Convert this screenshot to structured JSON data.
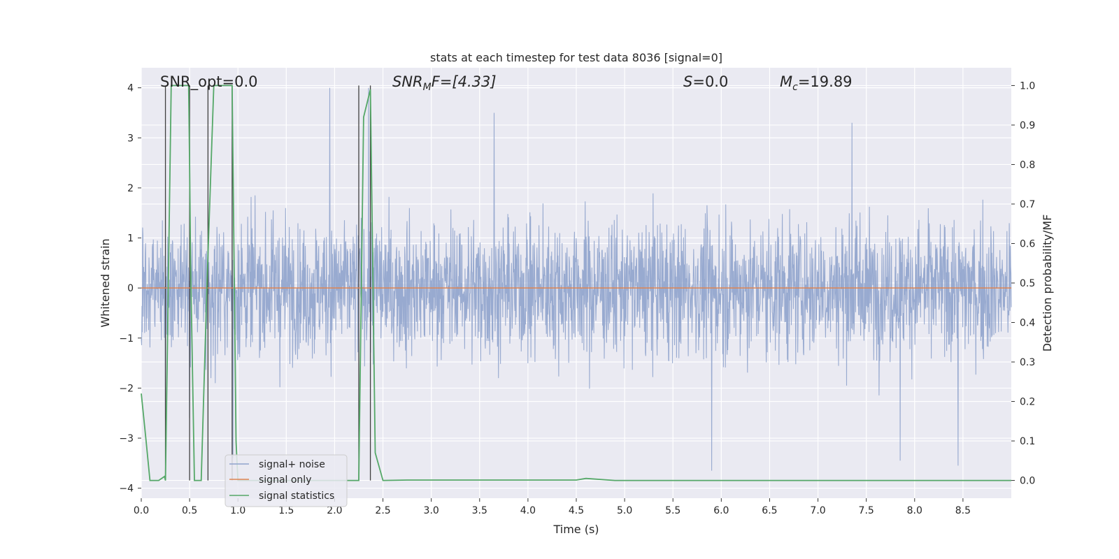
{
  "chart_data": {
    "type": "line",
    "title": "stats at each timestep for test data 8036 [signal=0]",
    "xlabel": "Time (s)",
    "ylabel": "Whitened strain",
    "ylabel_right": "Detection probability/MF",
    "xlim": [
      0.0,
      9.0
    ],
    "ylim": [
      -4.2,
      4.4
    ],
    "ylim_right": [
      -0.045,
      1.045
    ],
    "x_ticks": [
      "0.0",
      "0.5",
      "1.0",
      "1.5",
      "2.0",
      "2.5",
      "3.0",
      "3.5",
      "4.0",
      "4.5",
      "5.0",
      "5.5",
      "6.0",
      "6.5",
      "7.0",
      "7.5",
      "8.0",
      "8.5"
    ],
    "y_ticks": [
      "−4",
      "−3",
      "−2",
      "−1",
      "0",
      "1",
      "2",
      "3",
      "4"
    ],
    "y_ticks_right": [
      "0.0",
      "0.1",
      "0.2",
      "0.3",
      "0.4",
      "0.5",
      "0.6",
      "0.7",
      "0.8",
      "0.9",
      "1.0"
    ],
    "grid": true,
    "legend_position": "lower-left",
    "annotations": {
      "snr_opt": "SNR_opt=0.0",
      "snr_mf_main": "SNR",
      "snr_mf_sub": "M",
      "snr_mf_rest": "F=[4.33]",
      "s_main": "S",
      "s_rest": "=0.0",
      "mc_main": "M",
      "mc_sub": "c",
      "mc_rest": "=19.89"
    },
    "series": [
      {
        "name": "signal+ noise",
        "color": "#8fa3cc",
        "description_values": "whitened noise, approx ±1.4 envelope with spikes to about ±3.5",
        "peaks": [
          {
            "x": 0.25,
            "y": -2.6
          },
          {
            "x": 0.5,
            "y": -2.6
          },
          {
            "x": 0.72,
            "y": -1.8
          },
          {
            "x": 0.95,
            "y": -3.4
          },
          {
            "x": 1.95,
            "y": 4.0
          },
          {
            "x": 2.35,
            "y": 4.0
          },
          {
            "x": 3.65,
            "y": 3.5
          },
          {
            "x": 5.9,
            "y": -3.65
          },
          {
            "x": 7.35,
            "y": 3.3
          },
          {
            "x": 7.85,
            "y": -3.45
          },
          {
            "x": 8.45,
            "y": -3.55
          }
        ]
      },
      {
        "name": "signal only",
        "color": "#dd8452",
        "x": [
          0.0,
          9.0
        ],
        "y": [
          0.0,
          0.0
        ]
      },
      {
        "name": "signal statistics",
        "color": "#55a868",
        "axis": "right",
        "x": [
          0.0,
          0.05,
          0.09,
          0.18,
          0.24,
          0.25,
          0.31,
          0.49,
          0.5,
          0.51,
          0.55,
          0.62,
          0.68,
          0.75,
          0.94,
          0.98,
          1.0,
          2.25,
          2.3,
          2.37,
          2.42,
          2.5,
          2.75,
          4.5,
          4.6,
          4.9,
          9.0
        ],
        "y": [
          0.22,
          0.1,
          0.0,
          0.0,
          0.01,
          0.0,
          1.0,
          1.0,
          0.8,
          0.55,
          0.0,
          0.0,
          0.5,
          1.0,
          1.0,
          0.1,
          0.0,
          0.0,
          0.92,
          0.99,
          0.07,
          0.0,
          0.001,
          0.001,
          0.005,
          0.0,
          0.0
        ]
      }
    ],
    "vertical_lines": {
      "color": "#404040",
      "x": [
        0.25,
        0.5,
        0.69,
        0.94,
        2.25,
        2.37
      ]
    }
  }
}
